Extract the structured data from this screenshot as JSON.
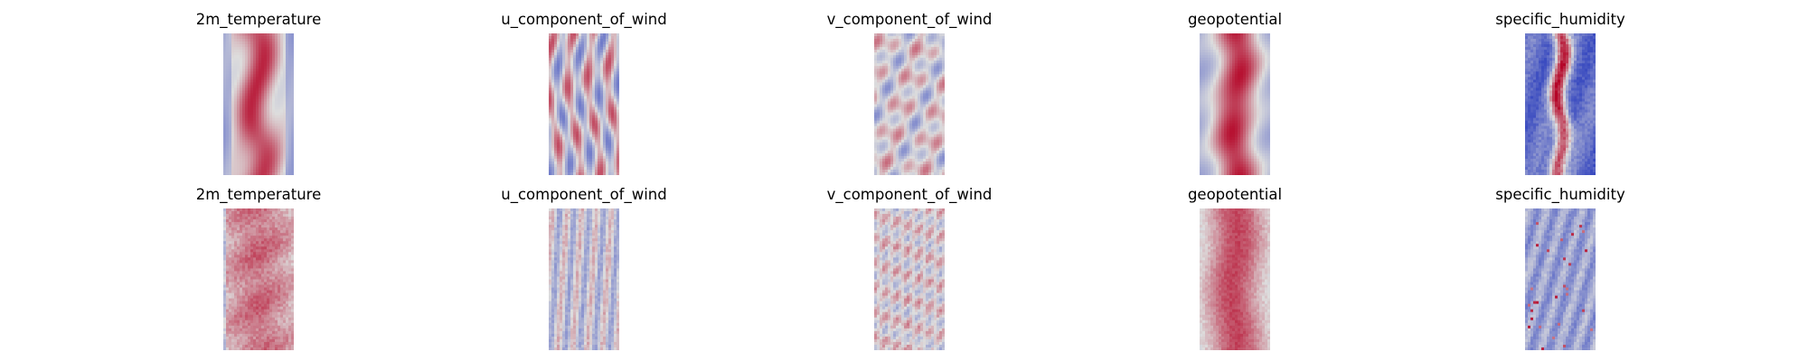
{
  "chart_data": {
    "type": "heatmap",
    "colormap": "coolwarm",
    "colormap_colors": {
      "low": "#3b4cc0",
      "mid": "#dddddd",
      "high": "#b40426"
    },
    "grid": false,
    "rows": [
      {
        "panels": [
          {
            "title": "2m_temperature",
            "pattern": "temperature_smooth"
          },
          {
            "title": "u_component_of_wind",
            "pattern": "u_wind_smooth"
          },
          {
            "title": "v_component_of_wind",
            "pattern": "v_wind_smooth"
          },
          {
            "title": "geopotential",
            "pattern": "geopotential_smooth"
          },
          {
            "title": "specific_humidity",
            "pattern": "humidity_smooth"
          }
        ]
      },
      {
        "panels": [
          {
            "title": "2m_temperature",
            "pattern": "temperature_noisy"
          },
          {
            "title": "u_component_of_wind",
            "pattern": "u_wind_noisy"
          },
          {
            "title": "v_component_of_wind",
            "pattern": "v_wind_noisy"
          },
          {
            "title": "geopotential",
            "pattern": "geopotential_noisy"
          },
          {
            "title": "specific_humidity",
            "pattern": "humidity_noisy"
          }
        ]
      }
    ]
  }
}
